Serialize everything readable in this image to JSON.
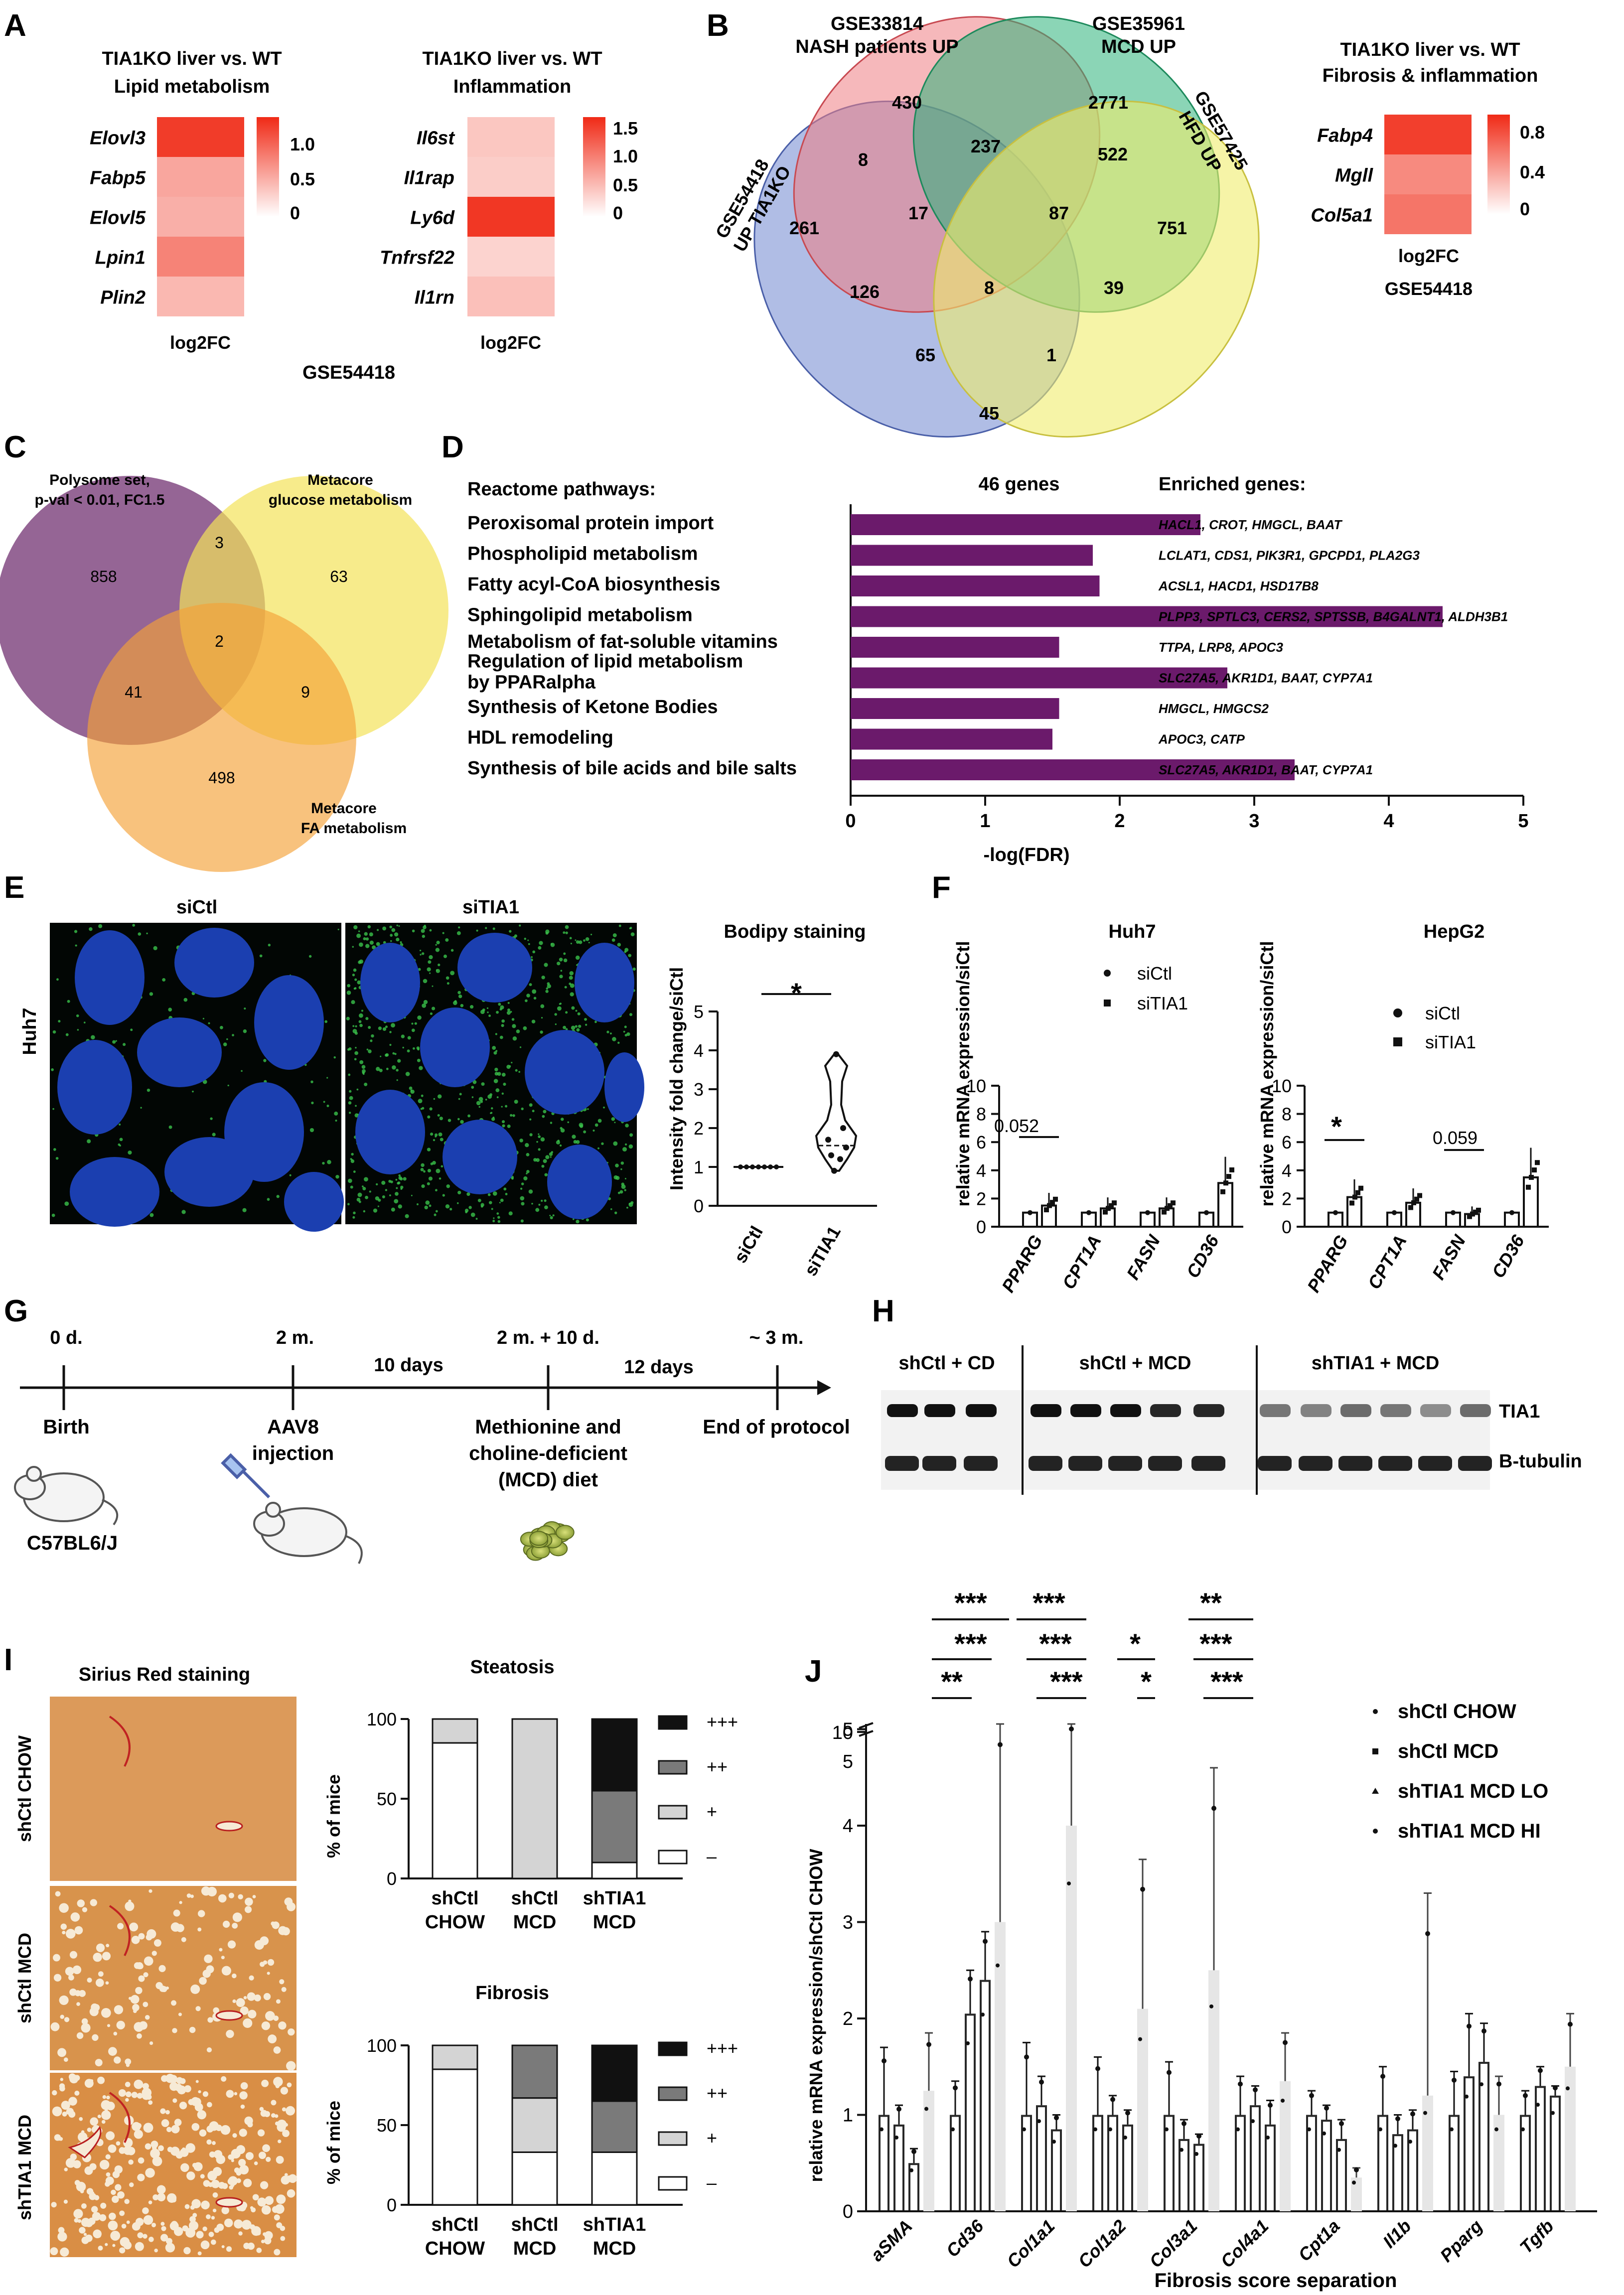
{
  "colors": {
    "heat_high": "#f02a16",
    "heat_low": "#ffffff",
    "purple": "#6b1a6b",
    "nucleus": "#1b3fb0",
    "lipid": "#39c24b",
    "stain_bg": "#d9904a",
    "venn_blue": "#6f86cf",
    "venn_red": "#ef7d83",
    "venn_green": "#2bb37a",
    "venn_yellow": "#f0ec6c",
    "c_purple": "#7b3f7b",
    "c_yellow": "#f3e25a",
    "c_orange": "#f4a238"
  },
  "panelA": {
    "letter": "A",
    "lipid": {
      "title1": "TIA1KO liver vs. WT",
      "title2": "Lipid metabolism",
      "genes": [
        "Elovl3",
        "Fabp5",
        "Elovl5",
        "Lpin1",
        "Plin2"
      ],
      "values": [
        1.1,
        0.5,
        0.45,
        0.7,
        0.4
      ],
      "scale_ticks": [
        "1.0",
        "0.5",
        "0"
      ],
      "scale_max": 1.2,
      "xlabel": "log2FC"
    },
    "inflam": {
      "title1": "TIA1KO liver vs. WT",
      "title2": "Inflammation",
      "genes": [
        "Il6st",
        "Il1rap",
        "Ly6d",
        "Tnfrsf22",
        "Il1rn"
      ],
      "values": [
        0.45,
        0.4,
        1.6,
        0.35,
        0.5
      ],
      "scale_ticks": [
        "1.5",
        "1.0",
        "0.5",
        "0"
      ],
      "scale_max": 1.7,
      "xlabel": "log2FC"
    },
    "dataset": "GSE54418"
  },
  "panelB": {
    "letter": "B",
    "label_blue": [
      "GSE54418",
      "UP TIA1KO"
    ],
    "label_red": [
      "GSE33814",
      "NASH patients UP"
    ],
    "label_green": [
      "GSE35961",
      "MCD UP"
    ],
    "label_yellow": [
      "GSE57425",
      "HFD UP"
    ],
    "counts": [
      "430",
      "2771",
      "8",
      "237",
      "522",
      "261",
      "17",
      "87",
      "751",
      "126",
      "8",
      "39",
      "65",
      "1",
      "45"
    ],
    "heat": {
      "title1": "TIA1KO liver vs. WT",
      "title2": "Fibrosis & inflammation",
      "genes": [
        "Fabp4",
        "Mgll",
        "Col5a1"
      ],
      "values": [
        0.9,
        0.55,
        0.65
      ],
      "scale_ticks": [
        "0.8",
        "0.4",
        "0"
      ],
      "scale_max": 1.0,
      "xlabel": "log2FC",
      "dataset": "GSE54418"
    }
  },
  "panelC": {
    "letter": "C",
    "label_purple": [
      "Polysome set,",
      "p-val < 0.01, FC1.5"
    ],
    "label_yellow": [
      "Metacore",
      "glucose metabolism"
    ],
    "label_orange": [
      "Metacore",
      "FA metabolism"
    ],
    "counts": [
      "858",
      "3",
      "63",
      "2",
      "41",
      "9",
      "498"
    ]
  },
  "panelD": {
    "letter": "D",
    "header_left": "Reactome pathways:",
    "header_mid": "46 genes",
    "header_right": "Enriched genes:",
    "xlabel": "-log(FDR)",
    "ticks": [
      "0",
      "1",
      "2",
      "3",
      "4",
      "5"
    ]
  },
  "panelE": {
    "letter": "E",
    "img_left_title": "siCtl",
    "img_right_title": "siTIA1",
    "row_label": "Huh7",
    "plot_title": "Bodipy staining",
    "ylabel": "Intensity fold change/siCtl",
    "ticks": [
      "0",
      "1",
      "2",
      "3",
      "4",
      "5"
    ],
    "cats": [
      "siCtl",
      "siTIA1"
    ],
    "star": "*"
  },
  "panelF": {
    "letter": "F",
    "ylabel": "relative mRNA expression/siCtl",
    "huh7": {
      "title": "Huh7",
      "p1": "0.052"
    },
    "hepg2": {
      "title": "HepG2",
      "star": "*",
      "p1": "0.059"
    },
    "genes": [
      "PPARG",
      "CPT1A",
      "FASN",
      "CD36"
    ],
    "legend": [
      "siCtl",
      "siTIA1"
    ],
    "ticks": [
      "0",
      "2",
      "4",
      "6",
      "8",
      "10"
    ]
  },
  "panelG": {
    "letter": "G",
    "times": [
      "0 d.",
      "2 m.",
      "2 m. + 10 d.",
      "~ 3 m."
    ],
    "intervals": [
      "10 days",
      "12 days"
    ],
    "birth": "Birth",
    "aav": [
      "AAV8",
      "injection"
    ],
    "mcd": [
      "Methionine and",
      "choline-deficient",
      "(MCD) diet"
    ],
    "end": "End of protocol",
    "strain": "C57BL6/J"
  },
  "panelH": {
    "letter": "H",
    "groups": [
      "shCtl + CD",
      "shCtl + MCD",
      "shTIA1 + MCD"
    ],
    "bands": [
      "TIA1",
      "B-tubulin"
    ]
  },
  "panelI": {
    "letter": "I",
    "stain_title": "Sirius Red staining",
    "rows": [
      "shCtl CHOW",
      "shCtl MCD",
      "shTIA1 MCD"
    ],
    "steatosis_title": "Steatosis",
    "fibrosis_title": "Fibrosis",
    "ylabel": "% of mice",
    "ticks": [
      "0",
      "50",
      "100"
    ],
    "groups": [
      [
        "shCtl",
        "CHOW"
      ],
      [
        "shCtl",
        "MCD"
      ],
      [
        "shTIA1",
        "MCD"
      ]
    ],
    "legend": [
      "+++",
      "++",
      "+",
      "–"
    ]
  },
  "panelJ": {
    "letter": "J",
    "ylabel": "relative mRNA expression/shCtl CHOW",
    "xlabel": "Fibrosis score separation",
    "genes": [
      "aSMA",
      "Cd36",
      "Col1a1",
      "Col1a2",
      "Col3a1",
      "Col4a1",
      "Cpt1a",
      "Il1b",
      "Pparg",
      "Tgfb"
    ],
    "legend": [
      "shCtl CHOW",
      "shCtl MCD",
      "shTIA1 MCD LO",
      "shTIA1 MCD HI"
    ],
    "ticks": [
      "0",
      "1",
      "2",
      "3",
      "4",
      "5"
    ],
    "top_ticks": [
      "5",
      "10"
    ],
    "stars": [
      "***",
      "***",
      "**",
      "***",
      "***",
      "***",
      "*",
      "*",
      "*",
      "**",
      "***",
      "***"
    ]
  },
  "chart_data": [
    {
      "type": "bar",
      "title": "",
      "categories": [
        "Peroxisomal protein import",
        "Phospholipid metabolism",
        "Fatty acyl-CoA biosynthesis",
        "Sphingolipid metabolism",
        "Metabolism of fat-soluble vitamins",
        "Regulation of lipid metabolism by PPARalpha",
        "Synthesis of Ketone Bodies",
        "HDL remodeling",
        "Synthesis of bile acids and bile salts"
      ],
      "values": [
        2.6,
        1.8,
        1.85,
        4.4,
        1.55,
        2.8,
        1.55,
        1.5,
        3.3
      ],
      "genes": [
        "HACL1, CROT, HMGCL, BAAT",
        "LCLAT1, CDS1, PIK3R1, GPCPD1, PLA2G3",
        "ACSL1, HACD1, HSD17B8",
        "PLPP3, SPTLC3, CERS2, SPTSSB, B4GALNT1, ALDH3B1",
        "TTPA, LRP8, APOC3",
        "SLC27A5, AKR1D1, BAAT, CYP7A1",
        "HMGCL, HMGCS2",
        "APOC3, CATP",
        "SLC27A5, AKR1D1, BAAT, CYP7A1"
      ],
      "xlabel": "-log(FDR)",
      "xlim": [
        0,
        5
      ]
    },
    {
      "type": "scatter",
      "title": "Bodipy staining",
      "categories": [
        "siCtl",
        "siTIA1"
      ],
      "series": [
        {
          "name": "siCtl",
          "values": [
            1,
            1,
            1,
            1,
            1,
            1,
            1
          ]
        },
        {
          "name": "siTIA1",
          "values": [
            3.9,
            2.0,
            1.7,
            1.5,
            1.3,
            1.2,
            0.9
          ]
        }
      ],
      "ylabel": "Intensity fold change/siCtl",
      "ylim": [
        0,
        5
      ]
    },
    {
      "type": "bar",
      "title": "Huh7",
      "categories": [
        "PPARG",
        "CPT1A",
        "FASN",
        "CD36"
      ],
      "series": [
        {
          "name": "siCtl",
          "values": [
            1,
            1,
            1,
            1
          ]
        },
        {
          "name": "siTIA1",
          "values": [
            1.5,
            1.3,
            1.3,
            3.1
          ]
        }
      ],
      "ylabel": "relative mRNA expression/siCtl",
      "ylim": [
        0,
        10
      ]
    },
    {
      "type": "bar",
      "title": "HepG2",
      "categories": [
        "PPARG",
        "CPT1A",
        "FASN",
        "CD36"
      ],
      "series": [
        {
          "name": "siCtl",
          "values": [
            1,
            1,
            1,
            1
          ]
        },
        {
          "name": "siTIA1",
          "values": [
            2.1,
            1.7,
            0.9,
            3.5
          ]
        }
      ],
      "ylabel": "relative mRNA expression/siCtl",
      "ylim": [
        0,
        10
      ]
    },
    {
      "type": "bar",
      "title": "Steatosis",
      "categories": [
        "shCtl CHOW",
        "shCtl MCD",
        "shTIA1 MCD"
      ],
      "series": [
        {
          "name": "–",
          "values": [
            85,
            0,
            10
          ]
        },
        {
          "name": "+",
          "values": [
            15,
            100,
            0
          ]
        },
        {
          "name": "++",
          "values": [
            0,
            0,
            45
          ]
        },
        {
          "name": "+++",
          "values": [
            0,
            0,
            45
          ]
        }
      ],
      "ylabel": "% of mice",
      "ylim": [
        0,
        100
      ]
    },
    {
      "type": "bar",
      "title": "Fibrosis",
      "categories": [
        "shCtl CHOW",
        "shCtl MCD",
        "shTIA1 MCD"
      ],
      "series": [
        {
          "name": "–",
          "values": [
            85,
            33,
            33
          ]
        },
        {
          "name": "+",
          "values": [
            15,
            34,
            0
          ]
        },
        {
          "name": "++",
          "values": [
            0,
            33,
            32
          ]
        },
        {
          "name": "+++",
          "values": [
            0,
            0,
            35
          ]
        }
      ],
      "ylabel": "% of mice",
      "ylim": [
        0,
        100
      ]
    },
    {
      "type": "bar",
      "title": "",
      "categories": [
        "aSMA",
        "Cd36",
        "Col1a1",
        "Col1a2",
        "Col3a1",
        "Col4a1",
        "Cpt1a",
        "Il1b",
        "Pparg",
        "Tgfb"
      ],
      "series": [
        {
          "name": "shCtl CHOW",
          "values": [
            1,
            1,
            1,
            1,
            1,
            1,
            1,
            1,
            1,
            1
          ],
          "err": [
            0.7,
            0.35,
            0.75,
            0.6,
            0.55,
            0.4,
            0.25,
            0.5,
            0.45,
            0.25
          ]
        },
        {
          "name": "shCtl MCD",
          "values": [
            0.9,
            2.05,
            1.1,
            1.0,
            0.75,
            1.1,
            0.95,
            0.8,
            1.4,
            1.3
          ],
          "err": [
            0.2,
            0.45,
            0.3,
            0.2,
            0.2,
            0.2,
            0.15,
            0.2,
            0.65,
            0.2
          ]
        },
        {
          "name": "shTIA1 MCD LO",
          "values": [
            0.5,
            2.4,
            0.85,
            0.9,
            0.7,
            0.9,
            0.75,
            0.85,
            1.55,
            1.2
          ],
          "err": [
            0.15,
            0.5,
            0.15,
            0.15,
            0.1,
            0.25,
            0.2,
            0.2,
            0.4,
            0.1
          ]
        },
        {
          "name": "shTIA1 MCD HI",
          "values": [
            1.25,
            3.0,
            4.0,
            2.1,
            2.5,
            1.35,
            0.35,
            1.2,
            1.0,
            1.5
          ],
          "err": [
            0.6,
            2.3,
            4.2,
            1.55,
            2.1,
            0.5,
            0.1,
            2.1,
            0.4,
            0.55
          ]
        }
      ],
      "ylabel": "relative mRNA expression/shCtl CHOW",
      "xlabel": "Fibrosis score separation",
      "ylim": [
        0,
        10
      ]
    }
  ]
}
